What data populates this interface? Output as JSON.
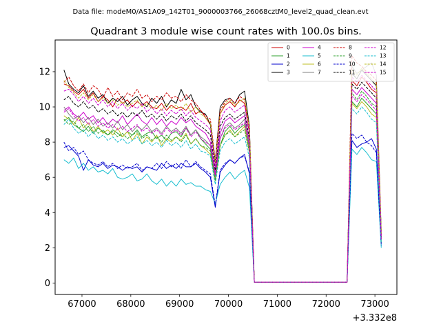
{
  "figure": {
    "suptitle": "Data file: modeM0/AS1A09_142T01_9000003766_26068cztM0_level2_quad_clean.evt",
    "title": "Quadrant 3 module wise count rates with 100.0s bins.",
    "x_offset_label": "+3.332e8"
  },
  "chart_data": {
    "type": "line",
    "title": "Quadrant 3 module wise count rates with 100.0s bins.",
    "xlabel": "",
    "ylabel": "",
    "x_offset": 333200000,
    "xlim": [
      66450,
      73450
    ],
    "ylim": [
      -0.65,
      13.8
    ],
    "x_ticks": [
      67000,
      68000,
      69000,
      70000,
      71000,
      72000,
      73000
    ],
    "y_ticks": [
      0,
      2,
      4,
      6,
      8,
      10,
      12
    ],
    "grid": false,
    "legend": "top-right, 4 columns",
    "x": [
      66630,
      66730,
      66830,
      66930,
      67030,
      67130,
      67230,
      67330,
      67430,
      67530,
      67630,
      67730,
      67830,
      67930,
      68030,
      68130,
      68230,
      68330,
      68430,
      68530,
      68630,
      68730,
      68830,
      68930,
      69030,
      69130,
      69230,
      69330,
      69430,
      69530,
      69630,
      69730,
      69830,
      69930,
      70030,
      70130,
      70230,
      70330,
      70430,
      70530,
      70630,
      70730,
      70830,
      70930,
      71030,
      71130,
      71230,
      71330,
      71430,
      71530,
      71630,
      71730,
      71830,
      71930,
      72030,
      72130,
      72230,
      72330,
      72430,
      72530,
      72630,
      72730,
      72830,
      72930,
      73030,
      73130
    ],
    "series": [
      {
        "name": "0",
        "color": "#cc0000",
        "dash": false,
        "values": [
          11.3,
          11.2,
          10.9,
          10.7,
          11.0,
          10.5,
          10.8,
          10.3,
          10.6,
          10.4,
          10.0,
          10.5,
          10.2,
          10.4,
          10.0,
          10.3,
          10.1,
          10.3,
          10.0,
          9.9,
          10.2,
          9.8,
          10.1,
          9.9,
          10.0,
          9.8,
          10.2,
          9.6,
          9.8,
          9.4,
          9.0,
          6.8,
          9.6,
          10.1,
          10.3,
          10.0,
          10.4,
          10.2,
          8.5,
          0.05,
          0.05,
          0.05,
          0.05,
          0.05,
          0.05,
          0.05,
          0.05,
          0.05,
          0.05,
          0.05,
          0.05,
          0.05,
          0.05,
          0.05,
          0.05,
          0.05,
          0.05,
          0.05,
          0.05,
          11.5,
          11.2,
          11.7,
          11.4,
          11.0,
          10.8,
          2.6
        ]
      },
      {
        "name": "1",
        "color": "#2ca02c",
        "dash": false,
        "values": [
          9.2,
          9.4,
          9.0,
          8.8,
          8.6,
          8.9,
          8.5,
          8.8,
          8.6,
          8.4,
          8.7,
          8.5,
          8.3,
          8.6,
          8.4,
          8.7,
          8.3,
          8.5,
          8.6,
          8.2,
          8.4,
          8.1,
          8.5,
          8.6,
          8.3,
          8.8,
          8.4,
          8.7,
          8.2,
          7.9,
          7.6,
          5.9,
          7.8,
          8.6,
          8.9,
          8.5,
          8.8,
          9.0,
          7.6,
          0.05,
          0.05,
          0.05,
          0.05,
          0.05,
          0.05,
          0.05,
          0.05,
          0.05,
          0.05,
          0.05,
          0.05,
          0.05,
          0.05,
          0.05,
          0.05,
          0.05,
          0.05,
          0.05,
          0.05,
          10.3,
          10.0,
          10.5,
          10.2,
          9.9,
          9.6,
          2.3
        ]
      },
      {
        "name": "2",
        "color": "#0000cc",
        "dash": false,
        "values": [
          7.7,
          7.8,
          7.5,
          7.2,
          6.4,
          7.0,
          6.7,
          6.6,
          6.8,
          6.5,
          6.7,
          6.6,
          6.4,
          6.6,
          6.5,
          6.6,
          6.3,
          6.6,
          6.5,
          6.4,
          6.8,
          6.5,
          6.7,
          6.5,
          6.8,
          6.6,
          6.6,
          6.8,
          6.5,
          6.3,
          6.0,
          4.3,
          6.3,
          6.7,
          7.0,
          6.8,
          7.1,
          7.3,
          6.2,
          0.05,
          0.05,
          0.05,
          0.05,
          0.05,
          0.05,
          0.05,
          0.05,
          0.05,
          0.05,
          0.05,
          0.05,
          0.05,
          0.05,
          0.05,
          0.05,
          0.05,
          0.05,
          0.05,
          0.05,
          8.1,
          7.7,
          7.9,
          8.0,
          8.2,
          7.6,
          2.1
        ]
      },
      {
        "name": "3",
        "color": "#000000",
        "dash": false,
        "values": [
          12.1,
          11.3,
          11.0,
          10.8,
          11.2,
          10.6,
          10.9,
          10.5,
          10.7,
          10.2,
          10.5,
          10.3,
          10.6,
          10.1,
          10.4,
          10.6,
          10.2,
          10.0,
          10.5,
          10.2,
          10.6,
          10.0,
          10.4,
          10.2,
          11.0,
          10.4,
          10.7,
          10.0,
          9.7,
          9.6,
          9.0,
          6.9,
          10.0,
          10.4,
          10.5,
          10.2,
          10.7,
          10.9,
          8.9,
          0.05,
          0.05,
          0.05,
          0.05,
          0.05,
          0.05,
          0.05,
          0.05,
          0.05,
          0.05,
          0.05,
          0.05,
          0.05,
          0.05,
          0.05,
          0.05,
          0.05,
          0.05,
          0.05,
          0.05,
          11.9,
          11.6,
          12.1,
          11.8,
          11.5,
          11.2,
          2.8
        ]
      },
      {
        "name": "4",
        "color": "#cc00cc",
        "dash": false,
        "values": [
          9.8,
          10.0,
          9.6,
          9.4,
          9.7,
          9.3,
          9.5,
          9.1,
          9.4,
          9.0,
          9.3,
          9.1,
          9.5,
          9.0,
          9.3,
          9.6,
          9.2,
          9.0,
          9.4,
          9.0,
          9.3,
          8.9,
          9.2,
          9.0,
          9.4,
          9.1,
          9.3,
          8.9,
          8.7,
          8.5,
          8.0,
          6.2,
          8.5,
          9.2,
          9.4,
          9.1,
          9.3,
          9.5,
          8.0,
          0.05,
          0.05,
          0.05,
          0.05,
          0.05,
          0.05,
          0.05,
          0.05,
          0.05,
          0.05,
          0.05,
          0.05,
          0.05,
          0.05,
          0.05,
          0.05,
          0.05,
          0.05,
          0.05,
          0.05,
          11.0,
          10.7,
          11.1,
          10.8,
          10.5,
          10.2,
          2.5
        ]
      },
      {
        "name": "5",
        "color": "#17becf",
        "dash": false,
        "values": [
          7.0,
          6.8,
          7.1,
          6.5,
          6.8,
          6.4,
          6.6,
          6.3,
          6.4,
          6.2,
          6.5,
          6.0,
          5.9,
          6.0,
          6.2,
          5.8,
          5.9,
          6.2,
          5.8,
          5.6,
          5.9,
          5.5,
          5.8,
          5.5,
          5.9,
          5.6,
          5.7,
          5.5,
          5.5,
          5.3,
          5.2,
          4.5,
          5.6,
          6.0,
          6.3,
          5.9,
          6.2,
          6.4,
          5.4,
          0.05,
          0.05,
          0.05,
          0.05,
          0.05,
          0.05,
          0.05,
          0.05,
          0.05,
          0.05,
          0.05,
          0.05,
          0.05,
          0.05,
          0.05,
          0.05,
          0.05,
          0.05,
          0.05,
          0.05,
          7.6,
          7.3,
          7.7,
          7.4,
          7.0,
          6.9,
          2.0
        ]
      },
      {
        "name": "6",
        "color": "#bcbd22",
        "dash": false,
        "values": [
          9.5,
          9.3,
          9.0,
          9.4,
          8.8,
          9.1,
          8.6,
          8.9,
          8.5,
          8.7,
          8.4,
          8.8,
          8.3,
          8.6,
          8.1,
          8.5,
          7.9,
          8.3,
          8.0,
          8.4,
          7.8,
          8.2,
          8.0,
          8.3,
          8.1,
          8.5,
          7.9,
          8.2,
          7.8,
          7.6,
          7.3,
          5.8,
          7.8,
          8.4,
          8.7,
          8.3,
          8.6,
          8.9,
          7.4,
          0.05,
          0.05,
          0.05,
          0.05,
          0.05,
          0.05,
          0.05,
          0.05,
          0.05,
          0.05,
          0.05,
          0.05,
          0.05,
          0.05,
          0.05,
          0.05,
          0.05,
          0.05,
          0.05,
          0.05,
          10.2,
          9.9,
          10.3,
          10.0,
          9.6,
          9.4,
          2.3
        ]
      },
      {
        "name": "7",
        "color": "#7f7f7f",
        "dash": false,
        "values": [
          10.0,
          9.6,
          9.3,
          9.5,
          9.1,
          9.4,
          9.0,
          9.3,
          8.9,
          9.1,
          8.8,
          9.2,
          8.7,
          9.0,
          8.6,
          8.9,
          8.7,
          9.0,
          8.6,
          8.8,
          8.5,
          8.9,
          8.6,
          8.8,
          8.5,
          8.9,
          8.4,
          8.7,
          8.3,
          8.1,
          7.8,
          6.0,
          8.2,
          8.9,
          9.1,
          8.8,
          9.0,
          9.3,
          7.8,
          0.05,
          0.05,
          0.05,
          0.05,
          0.05,
          0.05,
          0.05,
          0.05,
          0.05,
          0.05,
          0.05,
          0.05,
          0.05,
          0.05,
          0.05,
          0.05,
          0.05,
          0.05,
          0.05,
          0.05,
          12.3,
          11.9,
          12.1,
          12.3,
          12.5,
          11.8,
          3.0
        ]
      },
      {
        "name": "8",
        "color": "#cc0000",
        "dash": true,
        "values": [
          11.4,
          11.7,
          11.2,
          10.9,
          11.3,
          10.8,
          11.2,
          11.0,
          10.5,
          11.1,
          10.6,
          10.9,
          10.4,
          10.8,
          10.6,
          11.0,
          10.5,
          10.7,
          10.3,
          10.6,
          10.4,
          10.8,
          10.5,
          10.6,
          10.3,
          10.7,
          10.4,
          10.2,
          9.8,
          9.5,
          9.3,
          7.0,
          9.8,
          10.3,
          10.5,
          10.2,
          10.6,
          10.4,
          8.8,
          0.05,
          0.05,
          0.05,
          0.05,
          0.05,
          0.05,
          0.05,
          0.05,
          0.05,
          0.05,
          0.05,
          0.05,
          0.05,
          0.05,
          0.05,
          0.05,
          0.05,
          0.05,
          0.05,
          0.05,
          12.9,
          12.5,
          12.3,
          12.0,
          11.8,
          11.5,
          2.9
        ]
      },
      {
        "name": "9",
        "color": "#2ca02c",
        "dash": true,
        "values": [
          9.3,
          9.0,
          9.2,
          8.8,
          9.0,
          8.6,
          8.9,
          8.5,
          8.7,
          8.4,
          8.6,
          8.3,
          8.5,
          8.2,
          8.4,
          8.6,
          8.2,
          8.4,
          8.1,
          8.3,
          8.0,
          8.4,
          8.1,
          8.3,
          8.0,
          8.4,
          7.9,
          8.2,
          7.8,
          7.7,
          7.5,
          5.8,
          7.8,
          8.4,
          8.6,
          8.3,
          8.5,
          8.7,
          7.4,
          0.05,
          0.05,
          0.05,
          0.05,
          0.05,
          0.05,
          0.05,
          0.05,
          0.05,
          0.05,
          0.05,
          0.05,
          0.05,
          0.05,
          0.05,
          0.05,
          0.05,
          0.05,
          0.05,
          0.05,
          10.8,
          10.4,
          10.9,
          10.6,
          10.2,
          10.0,
          2.5
        ]
      },
      {
        "name": "10",
        "color": "#0000cc",
        "dash": true,
        "values": [
          8.0,
          7.5,
          7.7,
          7.3,
          7.5,
          7.0,
          6.8,
          6.7,
          6.9,
          6.6,
          6.8,
          6.5,
          6.7,
          6.5,
          6.6,
          6.8,
          6.4,
          6.6,
          6.5,
          6.8,
          6.5,
          6.9,
          6.6,
          6.8,
          6.5,
          7.0,
          6.6,
          6.9,
          6.6,
          6.4,
          6.2,
          4.4,
          6.4,
          6.8,
          7.0,
          6.8,
          7.1,
          7.2,
          6.3,
          0.05,
          0.05,
          0.05,
          0.05,
          0.05,
          0.05,
          0.05,
          0.05,
          0.05,
          0.05,
          0.05,
          0.05,
          0.05,
          0.05,
          0.05,
          0.05,
          0.05,
          0.05,
          0.05,
          0.05,
          8.5,
          8.2,
          8.4,
          8.0,
          7.8,
          7.4,
          2.2
        ]
      },
      {
        "name": "11",
        "color": "#000000",
        "dash": true,
        "values": [
          10.4,
          10.6,
          10.2,
          10.0,
          10.3,
          9.9,
          10.1,
          9.7,
          9.9,
          9.6,
          9.8,
          9.5,
          9.7,
          9.4,
          9.7,
          9.5,
          9.8,
          9.4,
          9.6,
          9.3,
          9.6,
          9.2,
          9.5,
          9.3,
          9.6,
          9.2,
          9.5,
          9.1,
          8.9,
          8.7,
          8.4,
          6.4,
          8.9,
          9.4,
          9.6,
          9.3,
          9.5,
          9.7,
          8.2,
          0.05,
          0.05,
          0.05,
          0.05,
          0.05,
          0.05,
          0.05,
          0.05,
          0.05,
          0.05,
          0.05,
          0.05,
          0.05,
          0.05,
          0.05,
          0.05,
          0.05,
          0.05,
          0.05,
          0.05,
          11.3,
          11.0,
          11.4,
          11.1,
          10.8,
          10.5,
          2.6
        ]
      },
      {
        "name": "12",
        "color": "#cc00cc",
        "dash": true,
        "values": [
          10.9,
          11.0,
          10.7,
          10.3,
          10.6,
          10.2,
          10.5,
          10.1,
          10.4,
          10.0,
          10.3,
          9.9,
          10.2,
          9.8,
          10.1,
          9.9,
          10.2,
          9.7,
          10.0,
          9.6,
          9.9,
          9.5,
          9.8,
          9.6,
          9.9,
          9.5,
          9.8,
          9.4,
          9.2,
          9.0,
          8.7,
          6.6,
          9.2,
          9.8,
          10.0,
          9.7,
          9.9,
          10.1,
          8.5,
          0.05,
          0.05,
          0.05,
          0.05,
          0.05,
          0.05,
          0.05,
          0.05,
          0.05,
          0.05,
          0.05,
          0.05,
          0.05,
          0.05,
          0.05,
          0.05,
          0.05,
          0.05,
          0.05,
          0.05,
          11.7,
          11.4,
          11.8,
          11.5,
          11.2,
          10.9,
          2.7
        ]
      },
      {
        "name": "13",
        "color": "#17becf",
        "dash": true,
        "values": [
          9.0,
          9.3,
          8.8,
          8.5,
          8.7,
          8.3,
          8.6,
          8.2,
          8.4,
          8.1,
          8.3,
          8.0,
          8.2,
          7.9,
          8.1,
          8.3,
          7.9,
          8.1,
          7.8,
          8.0,
          7.7,
          8.1,
          7.8,
          8.0,
          7.7,
          8.1,
          7.6,
          7.9,
          7.5,
          7.4,
          7.2,
          5.6,
          7.5,
          8.0,
          8.2,
          7.9,
          8.1,
          8.3,
          7.1,
          0.05,
          0.05,
          0.05,
          0.05,
          0.05,
          0.05,
          0.05,
          0.05,
          0.05,
          0.05,
          0.05,
          0.05,
          0.05,
          0.05,
          0.05,
          0.05,
          0.05,
          0.05,
          0.05,
          0.05,
          9.9,
          9.6,
          10.0,
          9.7,
          9.3,
          9.1,
          2.3
        ]
      },
      {
        "name": "14",
        "color": "#bcbd22",
        "dash": true,
        "values": [
          11.5,
          11.1,
          10.8,
          10.5,
          10.8,
          10.4,
          10.7,
          10.3,
          10.5,
          10.2,
          10.4,
          10.1,
          10.3,
          10.0,
          10.2,
          10.4,
          10.0,
          10.2,
          9.9,
          10.1,
          9.8,
          10.2,
          9.9,
          10.1,
          9.8,
          10.2,
          9.7,
          10.0,
          9.6,
          9.4,
          9.1,
          6.9,
          9.6,
          10.2,
          10.4,
          10.1,
          10.3,
          10.5,
          8.8,
          0.05,
          0.05,
          0.05,
          0.05,
          0.05,
          0.05,
          0.05,
          0.05,
          0.05,
          0.05,
          0.05,
          0.05,
          0.05,
          0.05,
          0.05,
          0.05,
          0.05,
          0.05,
          0.05,
          0.05,
          12.1,
          11.8,
          12.2,
          11.9,
          11.6,
          11.3,
          2.8
        ]
      },
      {
        "name": "15",
        "color": "#cc00cc",
        "dash": true,
        "values": [
          9.7,
          9.9,
          9.5,
          9.2,
          9.4,
          9.0,
          9.3,
          8.9,
          9.1,
          8.8,
          9.0,
          8.7,
          8.9,
          8.6,
          8.8,
          9.0,
          8.6,
          8.8,
          8.5,
          8.7,
          8.4,
          8.8,
          8.5,
          8.7,
          8.4,
          8.8,
          8.3,
          8.6,
          8.2,
          8.0,
          7.8,
          6.1,
          8.2,
          8.8,
          9.0,
          8.7,
          8.9,
          9.1,
          7.7,
          0.05,
          0.05,
          0.05,
          0.05,
          0.05,
          0.05,
          0.05,
          0.05,
          0.05,
          0.05,
          0.05,
          0.05,
          0.05,
          0.05,
          0.05,
          0.05,
          0.05,
          0.05,
          0.05,
          0.05,
          10.6,
          10.3,
          10.7,
          10.4,
          10.1,
          9.8,
          2.5
        ]
      }
    ]
  }
}
